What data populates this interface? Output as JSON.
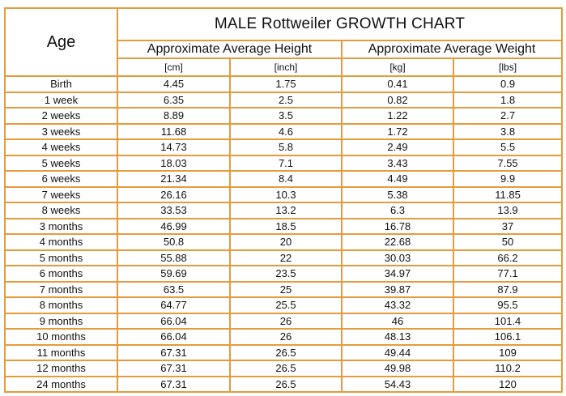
{
  "table": {
    "title": "MALE Rottweiler GROWTH CHART",
    "age_header": "Age",
    "height_header": "Approximate Average Height",
    "weight_header": "Approximate Average Weight",
    "units": [
      "[cm]",
      "[inch]",
      "[kg]",
      "[lbs]"
    ],
    "rows": [
      [
        "Birth",
        "4.45",
        "1.75",
        "0.41",
        "0.9"
      ],
      [
        "1 week",
        "6.35",
        "2.5",
        "0.82",
        "1.8"
      ],
      [
        "2 weeks",
        "8.89",
        "3.5",
        "1.22",
        "2.7"
      ],
      [
        "3 weeks",
        "11.68",
        "4.6",
        "1.72",
        "3.8"
      ],
      [
        "4 weeks",
        "14.73",
        "5.8",
        "2.49",
        "5.5"
      ],
      [
        "5 weeks",
        "18.03",
        "7.1",
        "3.43",
        "7.55"
      ],
      [
        "6 weeks",
        "21.34",
        "8.4",
        "4.49",
        "9.9"
      ],
      [
        "7 weeks",
        "26.16",
        "10.3",
        "5.38",
        "11.85"
      ],
      [
        "8 weeks",
        "33.53",
        "13.2",
        "6.3",
        "13.9"
      ],
      [
        "3 months",
        "46.99",
        "18.5",
        "16.78",
        "37"
      ],
      [
        "4 months",
        "50.8",
        "20",
        "22.68",
        "50"
      ],
      [
        "5 months",
        "55.88",
        "22",
        "30.03",
        "66.2"
      ],
      [
        "6 months",
        "59.69",
        "23.5",
        "34.97",
        "77.1"
      ],
      [
        "7 months",
        "63.5",
        "25",
        "39.87",
        "87.9"
      ],
      [
        "8 months",
        "64.77",
        "25.5",
        "43.32",
        "95.5"
      ],
      [
        "9 months",
        "66.04",
        "26",
        "46",
        "101.4"
      ],
      [
        "10 months",
        "66.04",
        "26",
        "48.13",
        "106.1"
      ],
      [
        "11 months",
        "67.31",
        "26.5",
        "49.44",
        "109"
      ],
      [
        "12 months",
        "67.31",
        "26.5",
        "49.98",
        "110.2"
      ],
      [
        "24 months",
        "67.31",
        "26.5",
        "54.43",
        "120"
      ]
    ]
  },
  "colors": {
    "border": "#e59b3c",
    "text": "#111111",
    "background": "#ffffff"
  }
}
